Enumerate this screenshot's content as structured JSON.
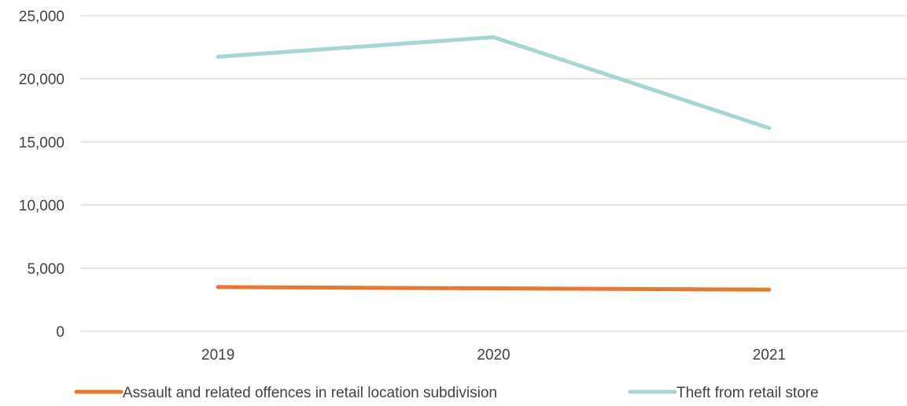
{
  "chart_data": {
    "type": "line",
    "categories": [
      "2019",
      "2020",
      "2021"
    ],
    "series": [
      {
        "name": "Assault and related offences in retail location subdivision",
        "values": [
          3500,
          3400,
          3300
        ],
        "color": "#e8782f"
      },
      {
        "name": "Theft from retail store",
        "values": [
          21750,
          23300,
          16100
        ],
        "color": "#a5d6d3"
      }
    ],
    "ylim": [
      0,
      25000
    ],
    "yticks": [
      0,
      5000,
      10000,
      15000,
      20000,
      25000
    ],
    "ytick_labels": [
      "0",
      "5,000",
      "10,000",
      "15,000",
      "20,000",
      "25,000"
    ],
    "grid": true,
    "legend_position": "bottom",
    "title": "",
    "xlabel": "",
    "ylabel": ""
  }
}
